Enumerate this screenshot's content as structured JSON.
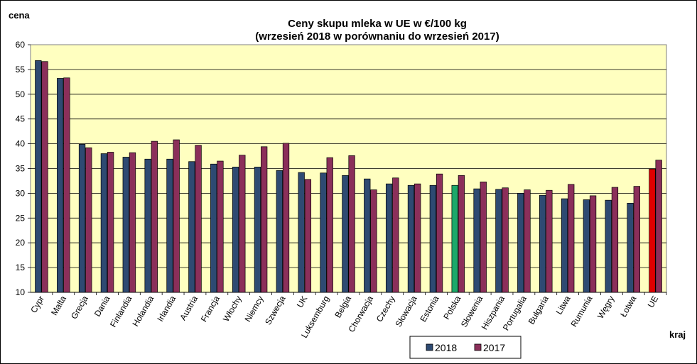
{
  "chart_data": {
    "type": "bar",
    "title_line1": "Ceny skupu mleka  w UE w €/100 kg",
    "title_line2": "(wrzesień 2018 w porównaniu do wrzesień 2017)",
    "ylabel": "cena",
    "xlabel": "kraj",
    "ylim": [
      10,
      60
    ],
    "yticks": [
      10,
      15,
      20,
      25,
      30,
      35,
      40,
      45,
      50,
      55,
      60
    ],
    "grid": true,
    "legend_position": "bottom-right",
    "plot_background": "#FFFFC0",
    "categories": [
      "Cypr",
      "Malta",
      "Grecja",
      "Dania",
      "Finlandia",
      "Holandia",
      "Irlandia",
      "Austria",
      "Francja",
      "Włochy",
      "Niemcy",
      "Szwecja",
      "UK",
      "Luksemburg",
      "Belgia",
      "Chorwacja",
      "Czechy",
      "Słowacja",
      "Estonia",
      "Polska",
      "Słowenia",
      "Hiszpania",
      "Portugalia",
      "Bułgaria",
      "Litwa",
      "Rumunia",
      "Węgry",
      "Łotwa",
      "UE"
    ],
    "series": [
      {
        "name": "2018",
        "color": "#2E4A72",
        "values": [
          56.8,
          53.2,
          39.9,
          38.0,
          37.3,
          36.9,
          36.9,
          36.4,
          35.9,
          35.3,
          35.3,
          34.6,
          34.2,
          34.1,
          33.6,
          32.9,
          31.9,
          31.6,
          31.6,
          31.6,
          30.9,
          30.8,
          30.0,
          29.6,
          28.9,
          28.7,
          28.6,
          28.0,
          34.9
        ],
        "highlight": {
          "Polska": "#1CA86A",
          "UE": "#E00000"
        }
      },
      {
        "name": "2017",
        "color": "#8B2F5A",
        "values": [
          56.6,
          53.3,
          39.2,
          38.3,
          38.2,
          40.5,
          40.8,
          39.7,
          36.5,
          37.7,
          39.4,
          40.1,
          32.8,
          37.2,
          37.6,
          30.7,
          33.1,
          31.9,
          33.9,
          33.6,
          32.3,
          31.1,
          30.7,
          30.6,
          31.8,
          29.5,
          31.2,
          31.4,
          36.7
        ]
      }
    ]
  }
}
